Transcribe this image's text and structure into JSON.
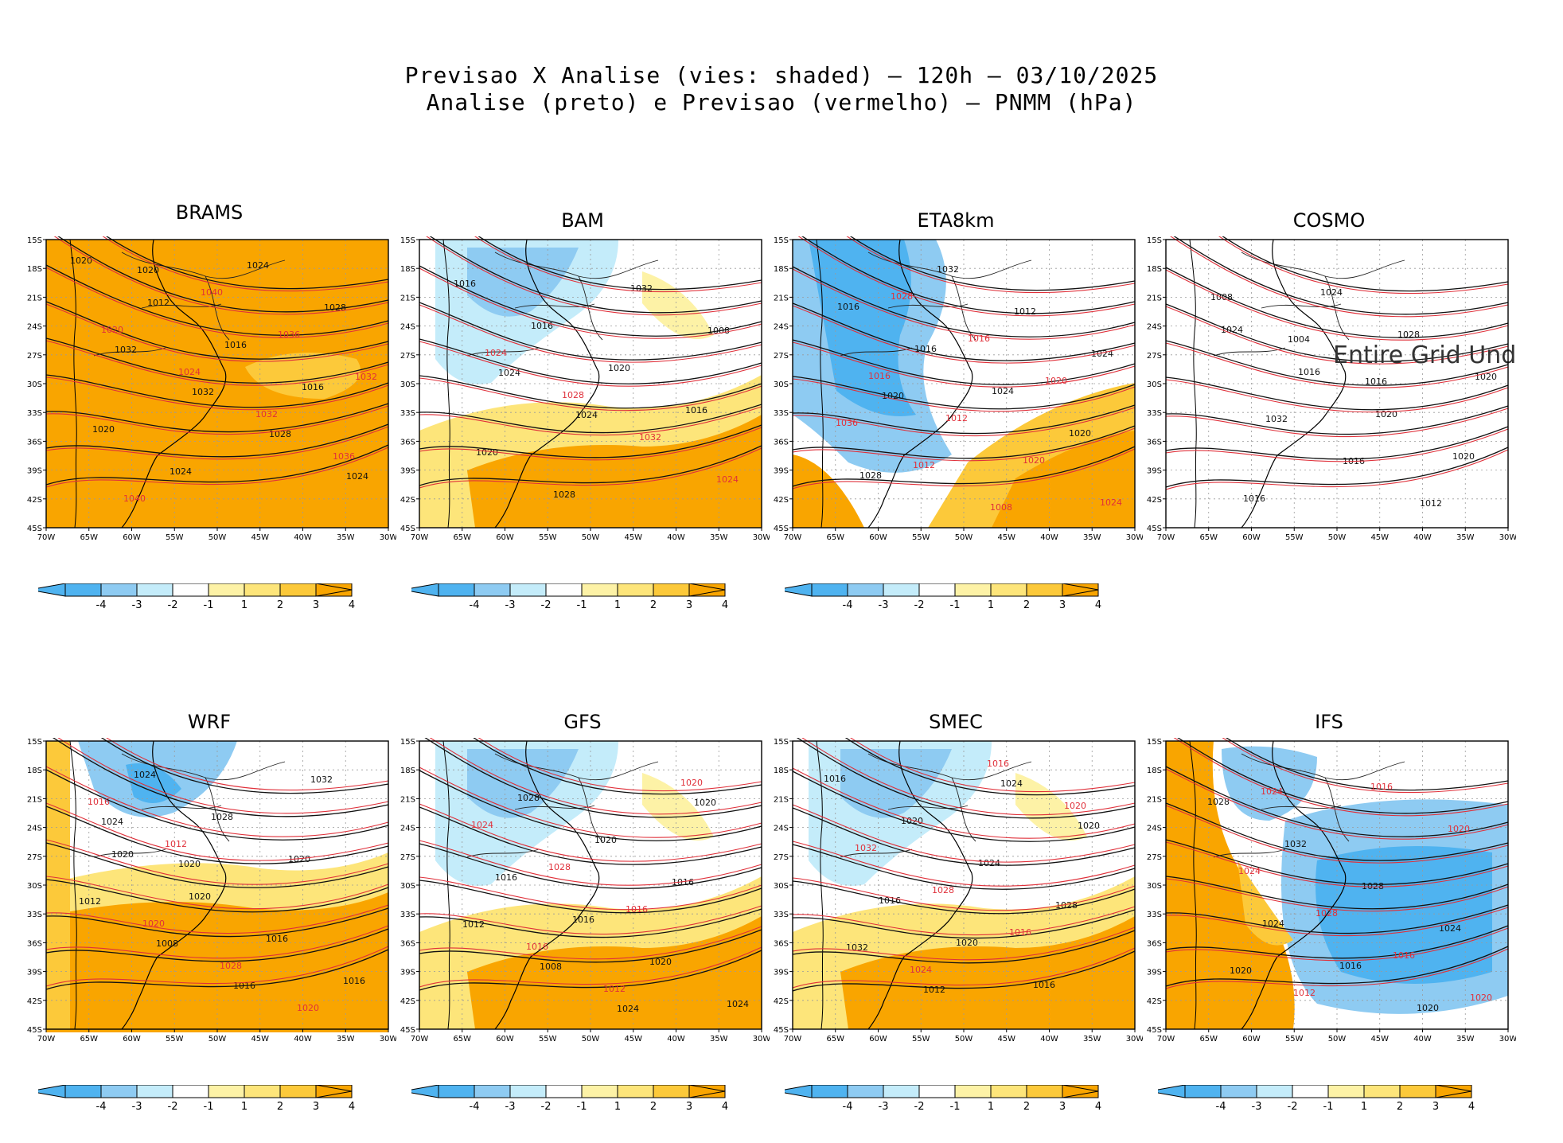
{
  "title": {
    "line1": "Previsao X Analise (vies: shaded) — 120h — 03/10/2025",
    "line2": "Analise (preto) e Previsao (vermelho) — PNMM (hPa)"
  },
  "axes": {
    "lat_labels": [
      "15S",
      "18S",
      "21S",
      "24S",
      "27S",
      "30S",
      "33S",
      "36S",
      "39S",
      "42S",
      "45S"
    ],
    "lon_labels": [
      "70W",
      "65W",
      "60W",
      "55W",
      "50W",
      "45W",
      "40W",
      "35W",
      "30W"
    ]
  },
  "colorbar": {
    "labels": [
      "-4",
      "-3",
      "-2",
      "-1",
      "1",
      "2",
      "3",
      "4"
    ],
    "colors": [
      "#4fb3f0",
      "#8ecbf2",
      "#c4ecfa",
      "#ffffff",
      "#fdf2a6",
      "#fde57a",
      "#fcc93a",
      "#f9a500"
    ]
  },
  "colors": {
    "analysis_contour": "#111111",
    "forecast_contour": "#e0303a",
    "coast": "#000000"
  },
  "panels": [
    {
      "name": "BRAMS",
      "bias": "warm-all",
      "analysis_labels": [
        "1020",
        "1012",
        "1016",
        "1016",
        "1020",
        "1024",
        "1024",
        "1028",
        "1032",
        "1032",
        "1028",
        "1024",
        "1020"
      ],
      "forecast_labels": [
        "1020",
        "1024",
        "1032",
        "1036",
        "1040",
        "1040",
        "1036",
        "1032"
      ]
    },
    {
      "name": "BAM",
      "bias": "cold-north-warm-south",
      "analysis_labels": [
        "1016",
        "1016",
        "1020",
        "1016",
        "1020",
        "1028",
        "1032",
        "1008",
        "1024",
        "1024"
      ],
      "forecast_labels": [
        "1024",
        "1028",
        "1032",
        "1024"
      ]
    },
    {
      "name": "ETA8km",
      "bias": "cold",
      "analysis_labels": [
        "1016",
        "1016",
        "1024",
        "1020",
        "1028",
        "1032",
        "1012",
        "1024",
        "1020"
      ],
      "forecast_labels": [
        "1016",
        "1012",
        "1020",
        "1024",
        "1028",
        "1016",
        "1020",
        "1036",
        "1012",
        "1008"
      ]
    },
    {
      "name": "COSMO",
      "bias": "none",
      "analysis_labels": [
        "1024",
        "1016",
        "1020",
        "1020",
        "1016",
        "1024",
        "1028",
        "1020",
        "1032",
        "1016",
        "1012",
        "1008",
        "1004",
        "1016"
      ],
      "forecast_labels": [],
      "note": "Entire Grid Und"
    },
    {
      "name": "WRF",
      "bias": "mixed",
      "analysis_labels": [
        "1020",
        "1020",
        "1016",
        "1016",
        "1024",
        "1028",
        "1020",
        "1012",
        "1008",
        "1016",
        "1032",
        "1024",
        "1020"
      ],
      "forecast_labels": [
        "1020",
        "1028",
        "1020",
        "1016",
        "1012"
      ]
    },
    {
      "name": "GFS",
      "bias": "cold-north-warm-south",
      "analysis_labels": [
        "1016",
        "1016",
        "1020",
        "1024",
        "1028",
        "1020",
        "1016",
        "1012",
        "1008",
        "1024",
        "1020"
      ],
      "forecast_labels": [
        "1016",
        "1012",
        "1020",
        "1024",
        "1028",
        "1016"
      ]
    },
    {
      "name": "SMEC",
      "bias": "cold-north-warm-south",
      "analysis_labels": [
        "1016",
        "1020",
        "1016",
        "1016",
        "1020",
        "1024",
        "1028",
        "1032",
        "1012",
        "1024",
        "1020"
      ],
      "forecast_labels": [
        "1024",
        "1016",
        "1020",
        "1032",
        "1028",
        "1016"
      ]
    },
    {
      "name": "IFS",
      "bias": "cold-east-warm-west",
      "analysis_labels": [
        "1024",
        "1016",
        "1020",
        "1028",
        "1032",
        "1028",
        "1024",
        "1020"
      ],
      "forecast_labels": [
        "1012",
        "1016",
        "1020",
        "1024",
        "1028",
        "1016",
        "1020",
        "1024"
      ]
    }
  ]
}
